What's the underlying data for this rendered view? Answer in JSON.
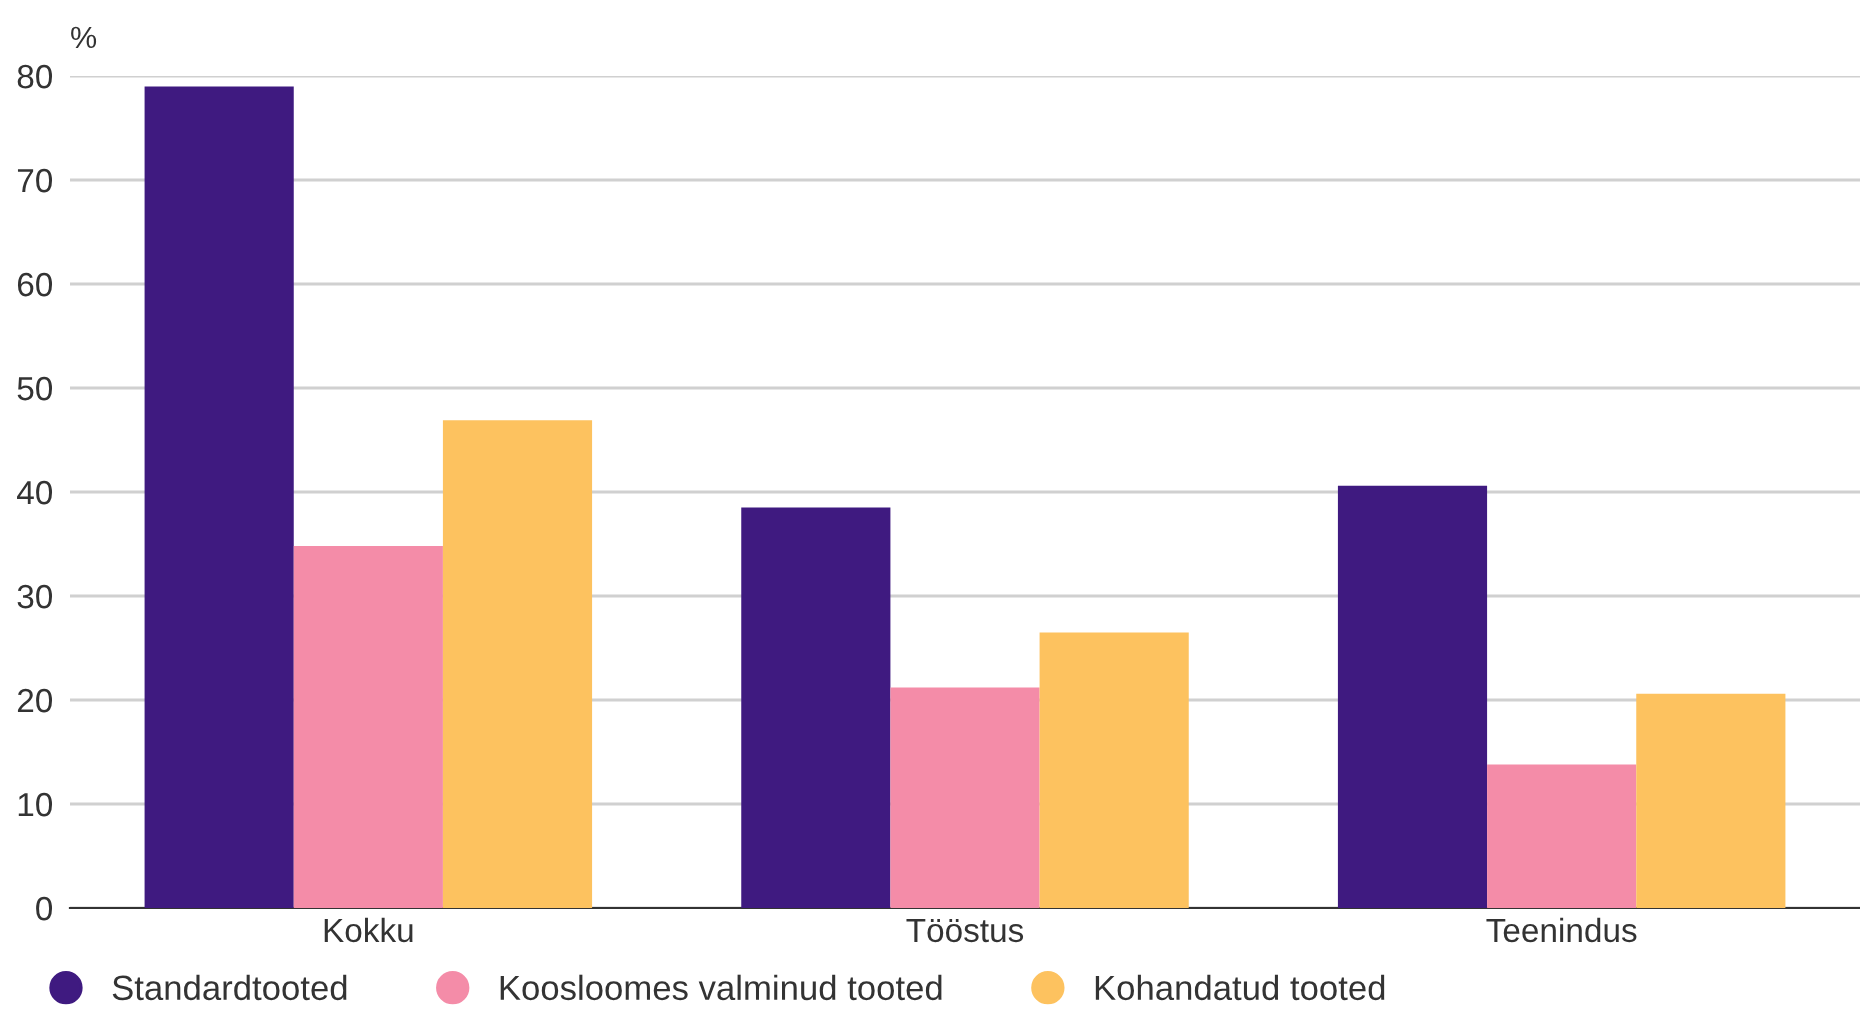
{
  "chart_data": {
    "type": "bar",
    "ylabel": "%",
    "categories": [
      "Kokku",
      "Tööstus",
      "Teenindus"
    ],
    "series": [
      {
        "name": "Standardtooted",
        "color": "#3f1a80",
        "values": [
          79.0,
          38.5,
          40.6
        ]
      },
      {
        "name": "Koosloomes valminud tooted",
        "color": "#f48ca8",
        "values": [
          34.8,
          21.2,
          13.8
        ]
      },
      {
        "name": "Kohandatud tooted",
        "color": "#fdc25f",
        "values": [
          46.9,
          26.5,
          20.6
        ]
      }
    ],
    "ylim": [
      0,
      80
    ],
    "yticks": [
      0,
      10,
      20,
      30,
      40,
      50,
      60,
      70,
      80
    ],
    "grid": "y",
    "legend": "bottom"
  }
}
